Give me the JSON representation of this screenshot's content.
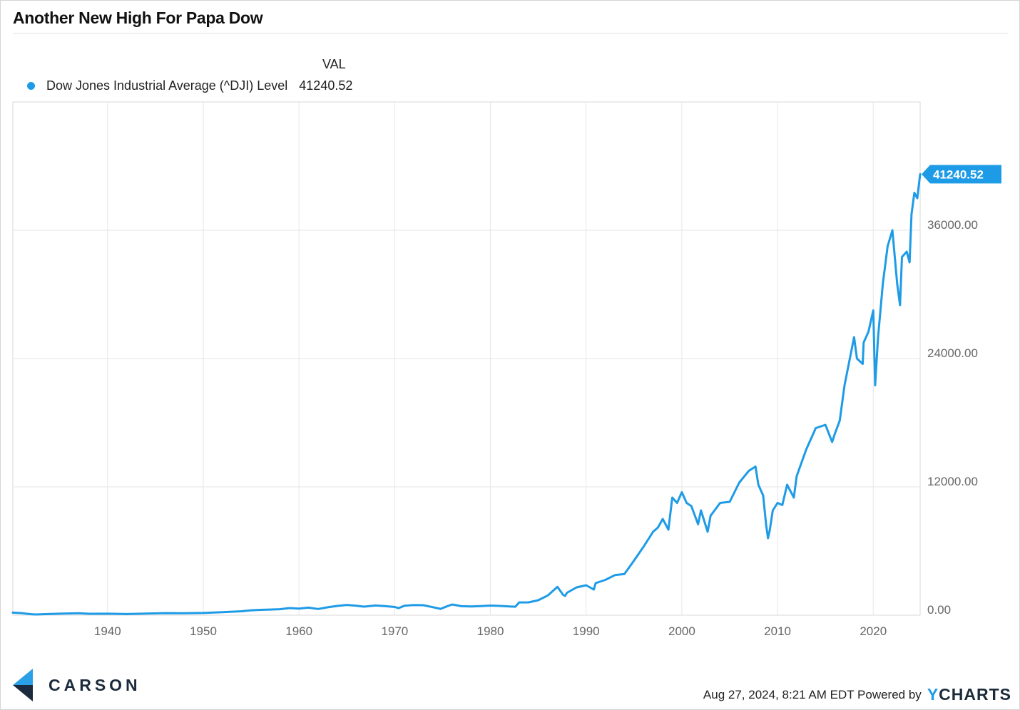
{
  "title": "Another New High For Papa Dow",
  "legend": {
    "column_header": "VAL",
    "series_label": "Dow Jones Industrial Average (^DJI) Level",
    "series_value": "41240.52"
  },
  "branding": {
    "logo_text": "CARSON",
    "footer_text": "Aug 27, 2024, 8:21 AM EDT Powered by",
    "provider_logo_y": "Y",
    "provider_logo_rest": "CHARTS"
  },
  "colors": {
    "series": "#1e9be6",
    "logo_dark": "#1b2a3c",
    "logo_light": "#2aa0e6"
  },
  "chart_data": {
    "type": "line",
    "title": "Another New High For Papa Dow",
    "xlabel": "",
    "ylabel": "",
    "x_ticks": [
      {
        "value": 1940,
        "label": "1940"
      },
      {
        "value": 1950,
        "label": "1950"
      },
      {
        "value": 1960,
        "label": "1960"
      },
      {
        "value": 1970,
        "label": "1970"
      },
      {
        "value": 1980,
        "label": "1980"
      },
      {
        "value": 1990,
        "label": "1990"
      },
      {
        "value": 2000,
        "label": "2000"
      },
      {
        "value": 2010,
        "label": "2010"
      },
      {
        "value": 2020,
        "label": "2020"
      }
    ],
    "y_ticks": [
      {
        "value": 0,
        "label": "0.00"
      },
      {
        "value": 12000,
        "label": "12000.00"
      },
      {
        "value": 24000,
        "label": "24000.00"
      },
      {
        "value": 36000,
        "label": "36000.00"
      }
    ],
    "xlim": [
      1930.1,
      2024.9
    ],
    "ylim": [
      0,
      48000
    ],
    "grid": true,
    "legend_position": "top-left",
    "last_value_label": "41240.52",
    "series": [
      {
        "name": "Dow Jones Industrial Average (^DJI) Level",
        "x": [
          1930.1,
          1931.0,
          1932.0,
          1932.5,
          1933.5,
          1935.0,
          1937.0,
          1938.0,
          1940.0,
          1942.0,
          1944.0,
          1946.0,
          1948.0,
          1950.0,
          1952.0,
          1954.0,
          1955.0,
          1956.0,
          1958.0,
          1959.0,
          1960.0,
          1961.0,
          1962.0,
          1963.0,
          1964.0,
          1965.0,
          1966.0,
          1966.8,
          1968.0,
          1969.0,
          1970.0,
          1970.4,
          1971.0,
          1972.0,
          1973.0,
          1974.0,
          1974.8,
          1975.5,
          1976.0,
          1977.0,
          1978.0,
          1979.0,
          1980.0,
          1981.0,
          1982.0,
          1982.6,
          1983.0,
          1984.0,
          1985.0,
          1986.0,
          1987.0,
          1987.6,
          1987.8,
          1988.0,
          1989.0,
          1990.0,
          1990.8,
          1991.0,
          1992.0,
          1993.0,
          1994.0,
          1995.0,
          1996.0,
          1997.0,
          1997.5,
          1998.0,
          1998.6,
          1999.0,
          1999.5,
          2000.0,
          2000.5,
          2001.0,
          2001.7,
          2002.0,
          2002.7,
          2003.0,
          2004.0,
          2005.0,
          2006.0,
          2007.0,
          2007.7,
          2008.0,
          2008.5,
          2008.8,
          2009.0,
          2009.2,
          2009.5,
          2010.0,
          2010.5,
          2011.0,
          2011.7,
          2012.0,
          2013.0,
          2014.0,
          2015.0,
          2015.7,
          2016.0,
          2016.5,
          2017.0,
          2018.0,
          2018.3,
          2018.9,
          2019.0,
          2019.5,
          2020.0,
          2020.2,
          2020.5,
          2021.0,
          2021.5,
          2022.0,
          2022.5,
          2022.8,
          2023.0,
          2023.5,
          2023.8,
          2024.0,
          2024.3,
          2024.6,
          2024.9
        ],
        "values": [
          240,
          190,
          90,
          70,
          100,
          140,
          180,
          130,
          140,
          110,
          150,
          190,
          180,
          210,
          280,
          370,
          460,
          500,
          560,
          670,
          620,
          710,
          580,
          740,
          870,
          960,
          880,
          800,
          910,
          850,
          770,
          660,
          880,
          950,
          930,
          750,
          590,
          850,
          1000,
          840,
          820,
          850,
          900,
          870,
          820,
          790,
          1190,
          1200,
          1400,
          1850,
          2650,
          1900,
          1800,
          2100,
          2600,
          2800,
          2400,
          3000,
          3300,
          3750,
          3850,
          5100,
          6400,
          7800,
          8200,
          9000,
          8000,
          11000,
          10500,
          11500,
          10500,
          10200,
          8500,
          9800,
          7800,
          9300,
          10500,
          10600,
          12400,
          13500,
          13900,
          12200,
          11200,
          8500,
          7200,
          8000,
          9800,
          10500,
          10300,
          12200,
          11000,
          13000,
          15500,
          17500,
          17800,
          16200,
          17000,
          18200,
          21500,
          26000,
          24000,
          23500,
          25500,
          26500,
          28500,
          21500,
          26000,
          31000,
          34500,
          36000,
          31000,
          29000,
          33500,
          34000,
          33000,
          37500,
          39500,
          39000,
          41240.52
        ]
      }
    ]
  }
}
